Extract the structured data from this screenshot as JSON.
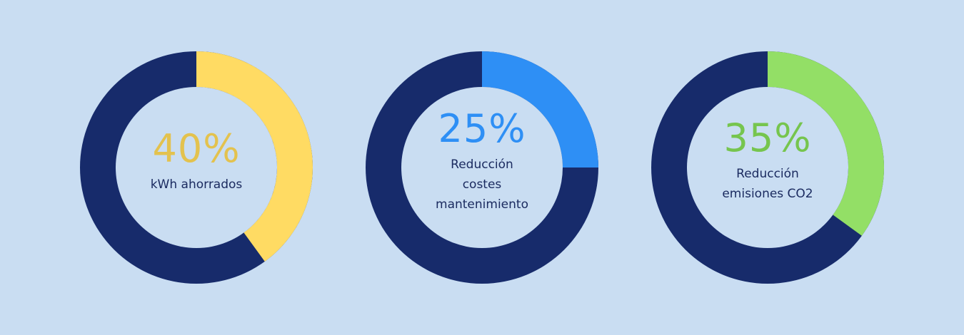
{
  "colors": {
    "background": "#c9ddf2",
    "track": "#172b6b",
    "center": "#c9ddf2"
  },
  "chart_data": [
    {
      "type": "pie",
      "value": 40,
      "max": 100,
      "percent_label": "40%",
      "label_lines": [
        "kWh ahorrados"
      ],
      "color": "#ffdb63",
      "text_color": "#e3c24e"
    },
    {
      "type": "pie",
      "value": 25,
      "max": 100,
      "percent_label": "25%",
      "label_lines": [
        "Reducción",
        "costes",
        "mantenimiento"
      ],
      "color": "#2e8ff5",
      "text_color": "#2e8ff5"
    },
    {
      "type": "pie",
      "value": 35,
      "max": 100,
      "percent_label": "35%",
      "label_lines": [
        "Reducción",
        "emisiones CO2"
      ],
      "color": "#93df66",
      "text_color": "#76c54e"
    }
  ]
}
